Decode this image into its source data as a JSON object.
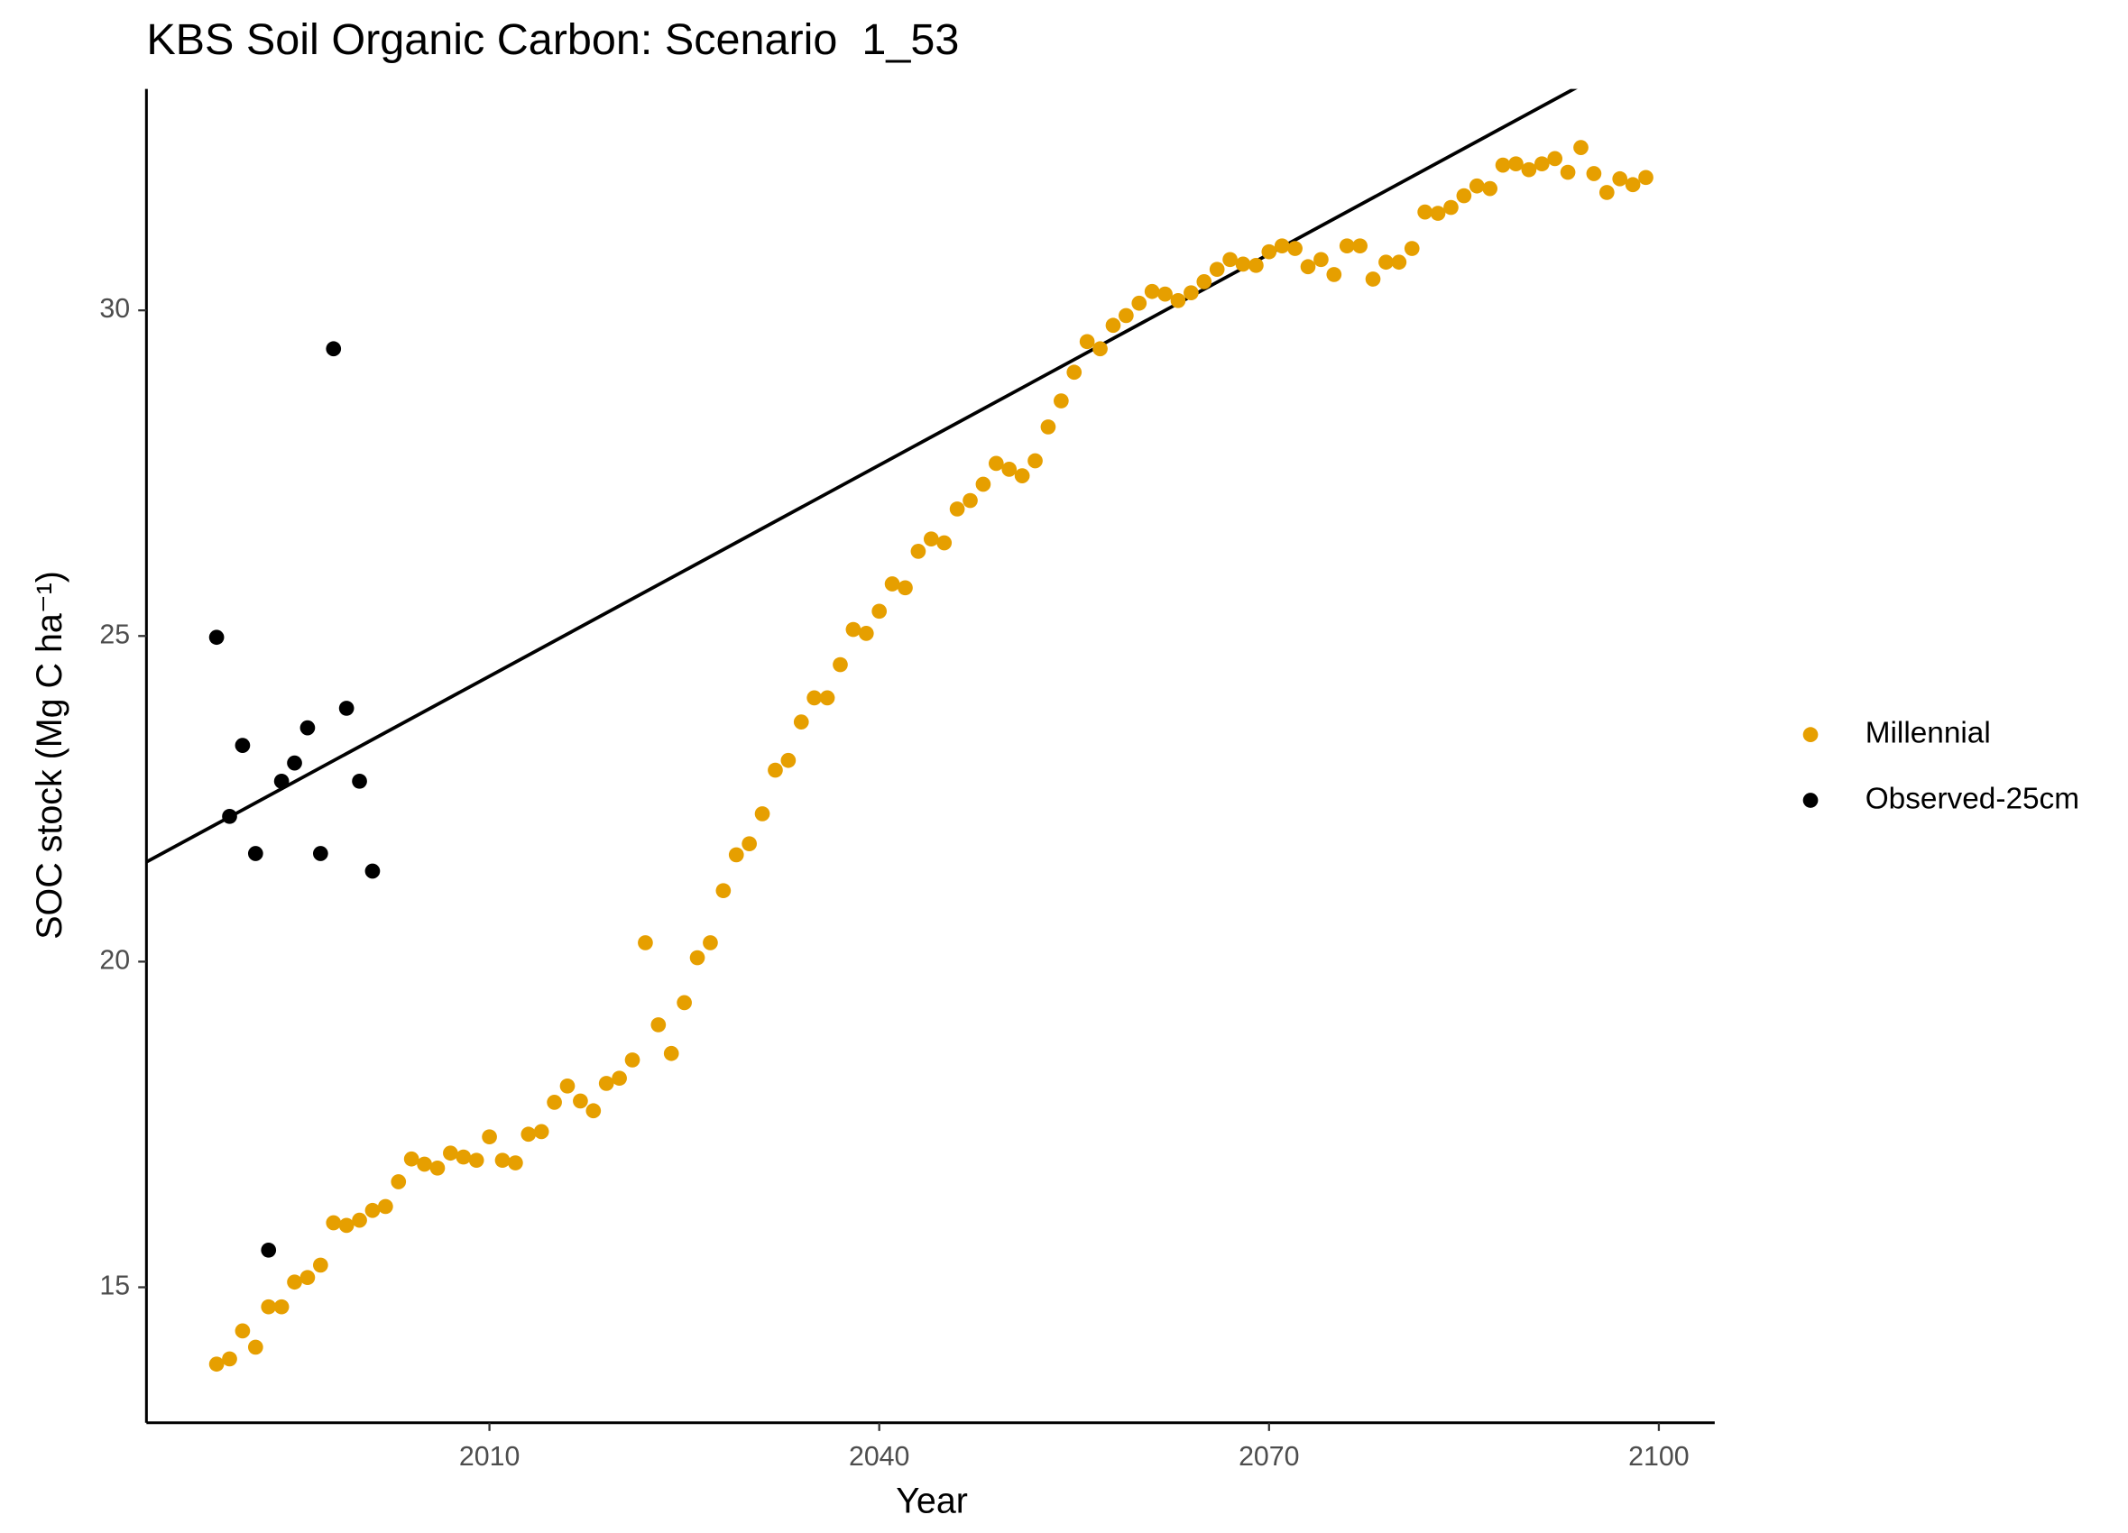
{
  "chart_data": {
    "type": "scatter",
    "title": "KBS Soil Organic Carbon: Scenario  1_53",
    "xlabel": "Year",
    "ylabel": "SOC stock (Mg C ha⁻¹)",
    "xlim": [
      1983.6,
      2104.3
    ],
    "xticks": [
      2010,
      2040,
      2070,
      2100
    ],
    "ylim": [
      12.92,
      33.4
    ],
    "yticks": [
      15,
      20,
      25,
      30
    ],
    "grid": false,
    "legend": "right",
    "series": [
      {
        "name": "Millennial",
        "color": "#E69F00",
        "x": [
          1989,
          1990,
          1991,
          1992,
          1993,
          1994,
          1995,
          1996,
          1997,
          1998,
          1999,
          2000,
          2001,
          2002,
          2003,
          2004,
          2005,
          2006,
          2007,
          2008,
          2009,
          2010,
          2011,
          2012,
          2013,
          2014,
          2015,
          2016,
          2017,
          2018,
          2019,
          2020,
          2021,
          2022,
          2023,
          2024,
          2025,
          2026,
          2027,
          2028,
          2029,
          2030,
          2031,
          2032,
          2033,
          2034,
          2035,
          2036,
          2037,
          2038,
          2039,
          2040,
          2041,
          2042,
          2043,
          2044,
          2045,
          2046,
          2047,
          2048,
          2049,
          2050,
          2051,
          2052,
          2053,
          2054,
          2055,
          2056,
          2057,
          2058,
          2059,
          2060,
          2061,
          2062,
          2063,
          2064,
          2065,
          2066,
          2067,
          2068,
          2069,
          2070,
          2071,
          2072,
          2073,
          2074,
          2075,
          2076,
          2077,
          2078,
          2079,
          2080,
          2081,
          2082,
          2083,
          2084,
          2085,
          2086,
          2087,
          2088,
          2089,
          2090,
          2091,
          2092,
          2093,
          2094,
          2095,
          2096,
          2097,
          2098,
          2099
        ],
        "values": [
          13.82,
          13.9,
          14.33,
          14.08,
          14.7,
          14.7,
          15.08,
          15.15,
          15.34,
          15.99,
          15.95,
          16.03,
          16.18,
          16.24,
          16.62,
          16.97,
          16.89,
          16.83,
          17.06,
          17.0,
          16.95,
          17.31,
          16.95,
          16.91,
          17.35,
          17.39,
          17.84,
          18.09,
          17.86,
          17.71,
          18.13,
          18.21,
          18.49,
          20.29,
          19.03,
          18.59,
          19.37,
          20.06,
          20.29,
          21.09,
          21.64,
          21.81,
          22.27,
          22.94,
          23.09,
          23.68,
          24.05,
          24.05,
          24.56,
          25.1,
          25.04,
          25.38,
          25.8,
          25.74,
          26.3,
          26.49,
          26.43,
          26.95,
          27.08,
          27.33,
          27.65,
          27.56,
          27.46,
          27.69,
          28.21,
          28.61,
          29.05,
          29.52,
          29.41,
          29.77,
          29.92,
          30.11,
          30.29,
          30.25,
          30.15,
          30.27,
          30.44,
          30.63,
          30.78,
          30.71,
          30.69,
          30.9,
          30.99,
          30.95,
          30.67,
          30.78,
          30.55,
          30.99,
          30.99,
          30.48,
          30.74,
          30.74,
          30.95,
          31.51,
          31.49,
          31.58,
          31.76,
          31.91,
          31.87,
          32.23,
          32.25,
          32.16,
          32.25,
          32.33,
          32.12,
          32.5,
          32.1,
          31.81,
          32.02,
          31.93,
          32.04
        ]
      },
      {
        "name": "Observed-25cm",
        "color": "#000000",
        "x": [
          1989,
          1990,
          1991,
          1992,
          1993,
          1994,
          1995,
          1996,
          1997,
          1998,
          1999,
          2000,
          2001
        ],
        "values": [
          24.98,
          22.23,
          23.32,
          21.66,
          15.57,
          22.77,
          23.05,
          23.59,
          21.66,
          29.41,
          23.89,
          22.77,
          21.39
        ]
      }
    ],
    "trend_line": {
      "color": "#000000",
      "x": [
        1983.6,
        2104.3
      ],
      "values": [
        21.53,
        34.57
      ]
    }
  }
}
